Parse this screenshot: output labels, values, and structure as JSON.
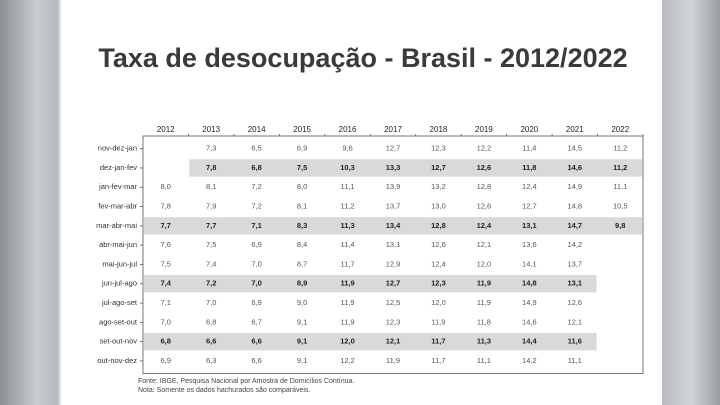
{
  "title": "Taxa de desocupação - Brasil - 2012/2022",
  "table": {
    "columns": [
      "2012",
      "2013",
      "2014",
      "2015",
      "2016",
      "2017",
      "2018",
      "2019",
      "2020",
      "2021",
      "2022"
    ],
    "row_labels": [
      "nov-dez-jan",
      "dez-jan-fev",
      "jan-fev-mar",
      "fev-mar-abr",
      "mar-abr-mai",
      "abr-mai-jun",
      "mai-jun-jul",
      "jun-jul-ago",
      "jul-ago-set",
      "ago-set-out",
      "set-out-nov",
      "out-nov-dez"
    ],
    "rows": [
      [
        null,
        "7,3",
        "6,5",
        "6,9",
        "9,6",
        "12,7",
        "12,3",
        "12,2",
        "11,4",
        "14,5",
        "11,2"
      ],
      [
        null,
        "7,8",
        "6,8",
        "7,5",
        "10,3",
        "13,3",
        "12,7",
        "12,6",
        "11,8",
        "14,6",
        "11,2"
      ],
      [
        "8,0",
        "8,1",
        "7,2",
        "8,0",
        "11,1",
        "13,9",
        "13,2",
        "12,8",
        "12,4",
        "14,9",
        "11,1"
      ],
      [
        "7,8",
        "7,9",
        "7,2",
        "8,1",
        "11,2",
        "13,7",
        "13,0",
        "12,6",
        "12,7",
        "14,8",
        "10,5"
      ],
      [
        "7,7",
        "7,7",
        "7,1",
        "8,3",
        "11,3",
        "13,4",
        "12,8",
        "12,4",
        "13,1",
        "14,7",
        "9,8"
      ],
      [
        "7,6",
        "7,5",
        "6,9",
        "8,4",
        "11,4",
        "13,1",
        "12,6",
        "12,1",
        "13,6",
        "14,2",
        null
      ],
      [
        "7,5",
        "7,4",
        "7,0",
        "8,7",
        "11,7",
        "12,9",
        "12,4",
        "12,0",
        "14,1",
        "13,7",
        null
      ],
      [
        "7,4",
        "7,2",
        "7,0",
        "8,9",
        "11,9",
        "12,7",
        "12,3",
        "11,9",
        "14,8",
        "13,1",
        null
      ],
      [
        "7,1",
        "7,0",
        "6,9",
        "9,0",
        "11,9",
        "12,5",
        "12,0",
        "11,9",
        "14,9",
        "12,6",
        null
      ],
      [
        "7,0",
        "6,8",
        "6,7",
        "9,1",
        "11,9",
        "12,3",
        "11,9",
        "11,8",
        "14,6",
        "12,1",
        null
      ],
      [
        "6,8",
        "6,6",
        "6,6",
        "9,1",
        "12,0",
        "12,1",
        "11,7",
        "11,3",
        "14,4",
        "11,6",
        null
      ],
      [
        "6,9",
        "6,3",
        "6,6",
        "9,1",
        "12,2",
        "11,9",
        "11,7",
        "11,1",
        "14,2",
        "11,1",
        null
      ]
    ]
  },
  "notes": [
    "Fonte: IBGE, Pesquisa Nacional por Amostra de Domicílios Contínua.",
    "Nota: Somente os dados hachurados são comparáveis."
  ]
}
